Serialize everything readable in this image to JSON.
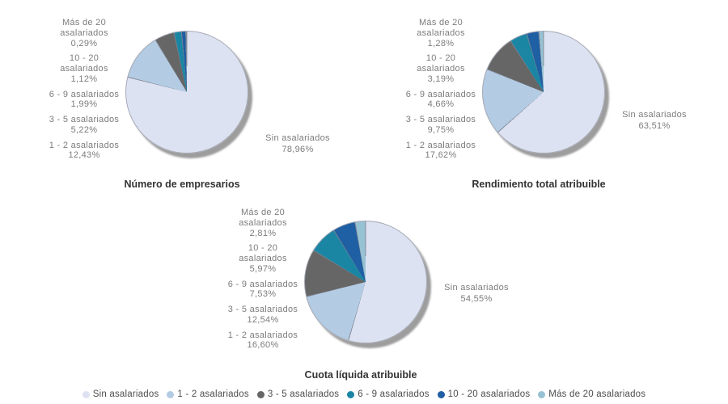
{
  "page": {
    "background": "#ffffff"
  },
  "legend": {
    "position": "bottom",
    "items": [
      {
        "label": "Sin asalariados",
        "color": "#dde2f2"
      },
      {
        "label": "1 - 2 asalariados",
        "color": "#b3cbe3"
      },
      {
        "label": "3 - 5 asalariados",
        "color": "#666666"
      },
      {
        "label": "6 - 9 asalariados",
        "color": "#1b86a4"
      },
      {
        "label": "10 - 20 asalariados",
        "color": "#1f5fa4"
      },
      {
        "label": "Más de 20 asalariados",
        "color": "#97c2d3"
      }
    ]
  },
  "chart_data": [
    {
      "type": "pie",
      "title": "Número de empresarios",
      "categories": [
        "Sin asalariados",
        "1 - 2 asalariados",
        "3 - 5 asalariados",
        "6 - 9 asalariados",
        "10 - 20 asalariados",
        "Más de 20 asalariados"
      ],
      "values": [
        78.96,
        12.43,
        5.22,
        1.99,
        1.12,
        0.29
      ],
      "value_labels": [
        "78,96%",
        "12,43%",
        "5,22%",
        "1,99%",
        "1,12%",
        "0,29%"
      ],
      "colors": [
        "#dde2f2",
        "#b3cbe3",
        "#666666",
        "#1b86a4",
        "#1f5fa4",
        "#97c2d3"
      ],
      "start_angle": "12-oclock",
      "direction": "clockwise",
      "legend_position": "bottom"
    },
    {
      "type": "pie",
      "title": "Rendimiento total atribuible",
      "categories": [
        "Sin asalariados",
        "1 - 2 asalariados",
        "3 - 5 asalariados",
        "6 - 9 asalariados",
        "10 - 20 asalariados",
        "Más de 20 asalariados"
      ],
      "values": [
        63.51,
        17.62,
        9.75,
        4.66,
        3.19,
        1.28
      ],
      "value_labels": [
        "63,51%",
        "17,62%",
        "9,75%",
        "4,66%",
        "3,19%",
        "1,28%"
      ],
      "colors": [
        "#dde2f2",
        "#b3cbe3",
        "#666666",
        "#1b86a4",
        "#1f5fa4",
        "#97c2d3"
      ],
      "start_angle": "12-oclock",
      "direction": "clockwise",
      "legend_position": "bottom"
    },
    {
      "type": "pie",
      "title": "Cuota líquida atribuible",
      "categories": [
        "Sin asalariados",
        "1 - 2 asalariados",
        "3 - 5 asalariados",
        "6 - 9 asalariados",
        "10 - 20 asalariados",
        "Más de 20 asalariados"
      ],
      "values": [
        54.55,
        16.6,
        12.54,
        7.53,
        5.97,
        2.81
      ],
      "value_labels": [
        "54,55%",
        "16,60%",
        "12,54%",
        "7,53%",
        "5,97%",
        "2,81%"
      ],
      "colors": [
        "#dde2f2",
        "#b3cbe3",
        "#666666",
        "#1b86a4",
        "#1f5fa4",
        "#97c2d3"
      ],
      "start_angle": "12-oclock",
      "direction": "clockwise",
      "legend_position": "bottom"
    }
  ]
}
